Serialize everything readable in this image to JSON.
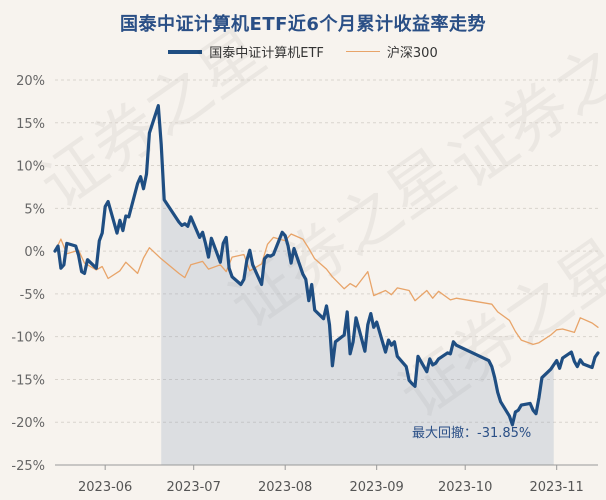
{
  "chart_data": {
    "type": "line",
    "title": "国泰中证计算机ETF近6个月累计收益率走势",
    "ylim": [
      -25,
      20
    ],
    "yticks": [
      20,
      15,
      10,
      5,
      0,
      -5,
      -10,
      -15,
      -20,
      -25
    ],
    "ytick_labels": [
      "20%",
      "15%",
      "10%",
      "5%",
      "0%",
      "-5%",
      "-10%",
      "-15%",
      "-20%",
      "-25%"
    ],
    "x_range": [
      "2023-05-15",
      "2023-11-15"
    ],
    "xticks": [
      "2023-06-01",
      "2023-07-01",
      "2023-08-01",
      "2023-09-01",
      "2023-10-01",
      "2023-11-01"
    ],
    "xtick_labels": [
      "2023-06",
      "2023-07",
      "2023-08",
      "2023-09",
      "2023-10",
      "2023-11"
    ],
    "grid": "horizontal",
    "legend_position": "top-center",
    "max_drawdown": {
      "start": "2023-06-20",
      "end": "2023-10-31",
      "label": "最大回撤：-31.85%"
    },
    "watermark": "证券之星",
    "series": [
      {
        "name": "国泰中证计算机ETF",
        "color": "#1f4e82",
        "x": [
          "2023-05-15",
          "2023-05-16",
          "2023-05-17",
          "2023-05-18",
          "2023-05-19",
          "2023-05-22",
          "2023-05-23",
          "2023-05-24",
          "2023-05-25",
          "2023-05-26",
          "2023-05-29",
          "2023-05-30",
          "2023-05-31",
          "2023-06-01",
          "2023-06-02",
          "2023-06-05",
          "2023-06-06",
          "2023-06-07",
          "2023-06-08",
          "2023-06-09",
          "2023-06-12",
          "2023-06-13",
          "2023-06-14",
          "2023-06-15",
          "2023-06-16",
          "2023-06-19",
          "2023-06-20",
          "2023-06-21",
          "2023-06-26",
          "2023-06-27",
          "2023-06-28",
          "2023-06-29",
          "2023-06-30",
          "2023-07-03",
          "2023-07-04",
          "2023-07-05",
          "2023-07-06",
          "2023-07-07",
          "2023-07-10",
          "2023-07-11",
          "2023-07-12",
          "2023-07-13",
          "2023-07-14",
          "2023-07-17",
          "2023-07-18",
          "2023-07-19",
          "2023-07-20",
          "2023-07-21",
          "2023-07-24",
          "2023-07-25",
          "2023-07-26",
          "2023-07-27",
          "2023-07-28",
          "2023-07-31",
          "2023-08-01",
          "2023-08-02",
          "2023-08-03",
          "2023-08-04",
          "2023-08-07",
          "2023-08-08",
          "2023-08-09",
          "2023-08-10",
          "2023-08-11",
          "2023-08-14",
          "2023-08-15",
          "2023-08-16",
          "2023-08-17",
          "2023-08-18",
          "2023-08-21",
          "2023-08-22",
          "2023-08-23",
          "2023-08-24",
          "2023-08-25",
          "2023-08-28",
          "2023-08-29",
          "2023-08-30",
          "2023-08-31",
          "2023-09-01",
          "2023-09-04",
          "2023-09-05",
          "2023-09-06",
          "2023-09-07",
          "2023-09-08",
          "2023-09-11",
          "2023-09-12",
          "2023-09-13",
          "2023-09-14",
          "2023-09-15",
          "2023-09-18",
          "2023-09-19",
          "2023-09-20",
          "2023-09-21",
          "2023-09-22",
          "2023-09-25",
          "2023-09-26",
          "2023-09-27",
          "2023-09-28",
          "2023-10-09",
          "2023-10-10",
          "2023-10-11",
          "2023-10-12",
          "2023-10-13",
          "2023-10-16",
          "2023-10-17",
          "2023-10-18",
          "2023-10-19",
          "2023-10-20",
          "2023-10-23",
          "2023-10-24",
          "2023-10-25",
          "2023-10-26",
          "2023-10-27",
          "2023-10-30",
          "2023-10-31",
          "2023-11-01",
          "2023-11-02",
          "2023-11-03",
          "2023-11-06",
          "2023-11-07",
          "2023-11-08",
          "2023-11-09",
          "2023-11-10",
          "2023-11-13",
          "2023-11-14",
          "2023-11-15"
        ],
        "values": [
          0,
          0.6,
          -2,
          -1.6,
          0.9,
          0.6,
          -0.5,
          -2.4,
          -2.6,
          -1,
          -2,
          1.2,
          2.1,
          5.2,
          5.8,
          2.1,
          3.6,
          2.4,
          4.1,
          4,
          7.9,
          8.7,
          7.3,
          9,
          13.8,
          17,
          12.5,
          6,
          3.4,
          3,
          3.2,
          2.9,
          4,
          1.6,
          2.2,
          0.9,
          -0.7,
          1.5,
          -1.3,
          0.9,
          1.6,
          -2,
          -3,
          -3.9,
          -3.3,
          -1.1,
          0.1,
          -1.6,
          -3.9,
          -0.9,
          -0.5,
          -0.6,
          -0.4,
          2.2,
          1.8,
          0.6,
          -1.4,
          0.3,
          -2.7,
          -3.3,
          -5.8,
          -3.9,
          -6.9,
          -7.9,
          -6.4,
          -8.6,
          -13.4,
          -10.6,
          -9.8,
          -7.1,
          -12,
          -10.6,
          -7.8,
          -11.7,
          -8.6,
          -7.3,
          -8.9,
          -8.3,
          -11.8,
          -10.4,
          -11,
          -10.6,
          -12.3,
          -13.5,
          -15.1,
          -15.5,
          -15.8,
          -12.3,
          -14.1,
          -12.6,
          -13.3,
          -13.1,
          -12.6,
          -11.9,
          -12,
          -10.6,
          -11,
          -12.8,
          -13.5,
          -14.8,
          -16.5,
          -17.6,
          -19.3,
          -20.3,
          -18.8,
          -18.6,
          -18,
          -17.8,
          -18.6,
          -19,
          -17.1,
          -14.8,
          -13.8,
          -13.3,
          -12.8,
          -13.7,
          -12.5,
          -11.8,
          -12.9,
          -13.5,
          -12.7,
          -13.2,
          -13.6,
          -12.4,
          -11.9
        ]
      },
      {
        "name": "沪深300",
        "color": "#e8a469",
        "x": [
          "2023-05-15",
          "2023-05-17",
          "2023-05-19",
          "2023-05-23",
          "2023-05-25",
          "2023-05-29",
          "2023-05-31",
          "2023-06-02",
          "2023-06-06",
          "2023-06-08",
          "2023-06-12",
          "2023-06-14",
          "2023-06-16",
          "2023-06-20",
          "2023-06-26",
          "2023-06-28",
          "2023-06-30",
          "2023-07-04",
          "2023-07-06",
          "2023-07-10",
          "2023-07-12",
          "2023-07-14",
          "2023-07-18",
          "2023-07-20",
          "2023-07-24",
          "2023-07-26",
          "2023-07-28",
          "2023-08-01",
          "2023-08-03",
          "2023-08-07",
          "2023-08-09",
          "2023-08-11",
          "2023-08-15",
          "2023-08-17",
          "2023-08-21",
          "2023-08-23",
          "2023-08-25",
          "2023-08-29",
          "2023-08-31",
          "2023-09-04",
          "2023-09-06",
          "2023-09-08",
          "2023-09-12",
          "2023-09-14",
          "2023-09-18",
          "2023-09-20",
          "2023-09-22",
          "2023-09-26",
          "2023-09-28",
          "2023-10-10",
          "2023-10-12",
          "2023-10-16",
          "2023-10-18",
          "2023-10-20",
          "2023-10-24",
          "2023-10-26",
          "2023-10-30",
          "2023-11-01",
          "2023-11-03",
          "2023-11-07",
          "2023-11-09",
          "2023-11-13",
          "2023-11-15"
        ],
        "values": [
          0,
          1.4,
          -0.3,
          0.1,
          -1.4,
          -2.2,
          -1.8,
          -3.2,
          -2.3,
          -1.3,
          -2.6,
          -0.8,
          0.4,
          -0.9,
          -2.6,
          -3.1,
          -1.6,
          -1.2,
          -2.1,
          -1.6,
          -2.4,
          -0.7,
          -0.4,
          -2.3,
          -1.5,
          0.8,
          1.6,
          1.2,
          2,
          1.4,
          0.3,
          -0.9,
          -2.1,
          -3,
          -4.4,
          -3.8,
          -4.2,
          -2.4,
          -5.2,
          -4.6,
          -5.1,
          -4.3,
          -4.6,
          -5.8,
          -4.6,
          -5.5,
          -4.7,
          -5.7,
          -5.5,
          -6.2,
          -7.1,
          -8.1,
          -9.4,
          -10.4,
          -10.9,
          -10.7,
          -9.8,
          -9.2,
          -9.1,
          -9.5,
          -7.8,
          -8.4,
          -8.9
        ]
      }
    ]
  }
}
